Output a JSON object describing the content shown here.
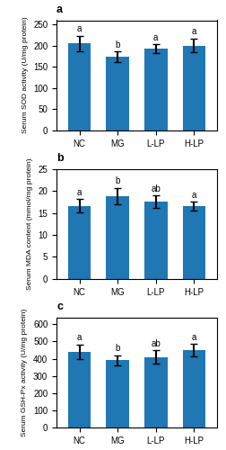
{
  "chart_data": [
    {
      "type": "bar",
      "title": "a",
      "ylabel": "Serum SOD activity (U/mg protein)",
      "categories": [
        "NC",
        "MG",
        "L-LP",
        "H-LP"
      ],
      "values": [
        205,
        174,
        193,
        200
      ],
      "errors": [
        18,
        12,
        10,
        16
      ],
      "annotations": [
        "a",
        "b",
        "a",
        "a"
      ],
      "ylim": [
        0,
        260
      ],
      "yticks": [
        0,
        50,
        100,
        150,
        200,
        250
      ]
    },
    {
      "type": "bar",
      "title": "b",
      "ylabel": "Serum MDA content (mmol/mg protein)",
      "categories": [
        "NC",
        "MG",
        "L-LP",
        "H-LP"
      ],
      "values": [
        16.6,
        18.8,
        17.5,
        16.5
      ],
      "errors": [
        1.5,
        1.8,
        1.4,
        1.0
      ],
      "annotations": [
        "a",
        "b",
        "ab",
        "a"
      ],
      "ylim": [
        0,
        25
      ],
      "yticks": [
        0,
        5,
        10,
        15,
        20,
        25
      ]
    },
    {
      "type": "bar",
      "title": "c",
      "ylabel": "Serum GSH-Px activity (U/mg protein)",
      "categories": [
        "NC",
        "MG",
        "L-LP",
        "H-LP"
      ],
      "values": [
        440,
        390,
        410,
        450
      ],
      "errors": [
        42,
        30,
        38,
        35
      ],
      "annotations": [
        "a",
        "b",
        "ab",
        "a"
      ],
      "ylim": [
        0,
        640
      ],
      "yticks": [
        0,
        100,
        200,
        300,
        400,
        500,
        600
      ]
    }
  ]
}
